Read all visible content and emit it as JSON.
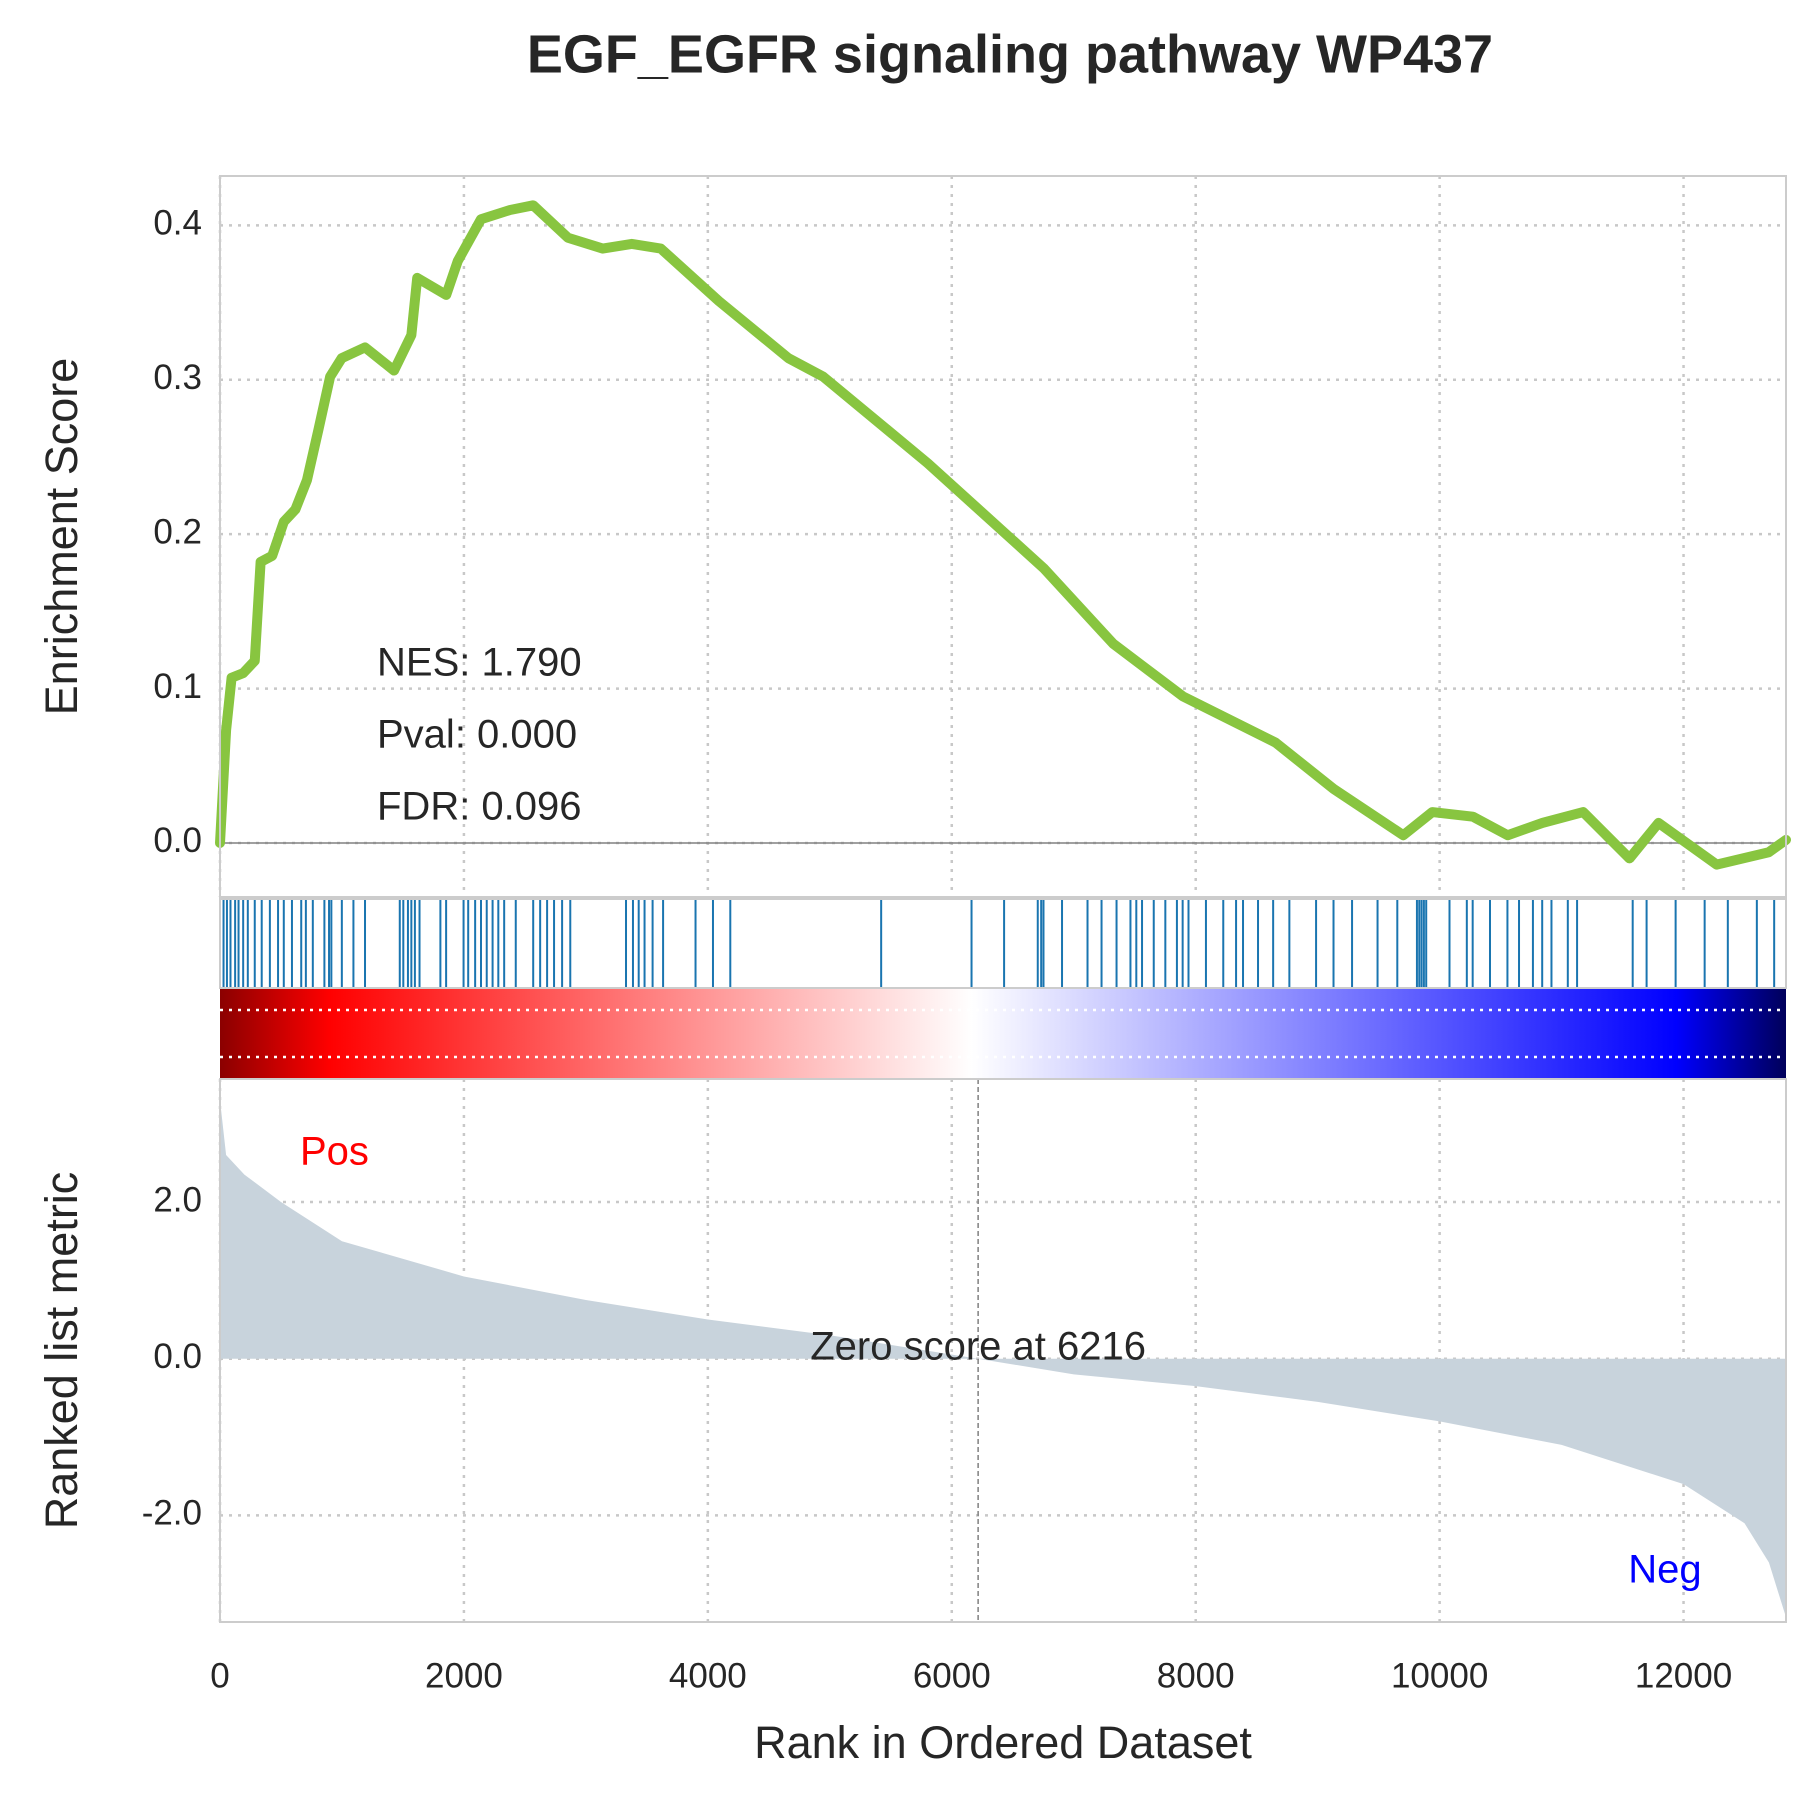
{
  "chart_data": [
    {
      "type": "line",
      "title": "EGF_EGFR signaling pathway WP437",
      "ylabel": "Enrichment Score",
      "annotations": [
        "NES: 1.790",
        "Pval: 0.000",
        "FDR: 0.096"
      ],
      "x": [
        0,
        50,
        95,
        190,
        285,
        333,
        428,
        523,
        618,
        713,
        808,
        903,
        998,
        1189,
        1427,
        1569,
        1617,
        1855,
        1950,
        2140,
        2378,
        2568,
        2853,
        3138,
        3376,
        3614,
        4090,
        4661,
        4946,
        5802,
        6753,
        7324,
        7894,
        8655,
        9131,
        9702,
        9940,
        10273,
        10558,
        10844,
        11177,
        11557,
        11795,
        12271,
        12699,
        12840
      ],
      "series": [
        {
          "color": "#88c540",
          "values": [
            0,
            0.073,
            0.107,
            0.11,
            0.118,
            0.182,
            0.186,
            0.208,
            0.216,
            0.235,
            0.268,
            0.302,
            0.314,
            0.321,
            0.306,
            0.329,
            0.366,
            0.355,
            0.377,
            0.404,
            0.41,
            0.413,
            0.392,
            0.385,
            0.388,
            0.385,
            0.351,
            0.314,
            0.302,
            0.246,
            0.178,
            0.129,
            0.095,
            0.065,
            0.035,
            0.005,
            0.02,
            0.017,
            0.005,
            0.013,
            0.02,
            -0.01,
            0.013,
            -0.014,
            -0.006,
            0.002
          ]
        }
      ],
      "xlim": [
        0,
        12840
      ],
      "xticks": [
        0,
        2000,
        4000,
        6000,
        8000,
        10000,
        12000
      ],
      "ylim": [
        -0.035,
        0.432
      ],
      "yticks": [
        {
          "value": 0,
          "label": "0.0"
        },
        0.1,
        0.2,
        0.3,
        0.4
      ],
      "grid": true
    },
    {
      "type": "rug",
      "color": "#1a75b0",
      "xlim": [
        0,
        12840
      ],
      "x": [
        29,
        57,
        86,
        124,
        152,
        190,
        228,
        285,
        342,
        409,
        476,
        523,
        590,
        666,
        704,
        761,
        856,
        894,
        913,
        999,
        1094,
        1189,
        1474,
        1503,
        1541,
        1569,
        1598,
        1636,
        1807,
        1854,
        1997,
        2035,
        2092,
        2140,
        2187,
        2235,
        2282,
        2330,
        2425,
        2568,
        2625,
        2682,
        2739,
        2805,
        2872,
        3329,
        3386,
        3433,
        3481,
        3547,
        3633,
        3899,
        4042,
        4184,
        5421,
        6162,
        6429,
        6705,
        6733,
        6752,
        6904,
        7113,
        7228,
        7351,
        7465,
        7513,
        7560,
        7656,
        7751,
        7846,
        7893,
        7941,
        8084,
        8226,
        8331,
        8388,
        8511,
        8635,
        8768,
        8987,
        9130,
        9282,
        9491,
        9653,
        9814,
        9833,
        9852,
        9871,
        9890,
        10081,
        10223,
        10271,
        10413,
        10556,
        10651,
        10765,
        10841,
        10917,
        11051,
        11127,
        11583,
        11697,
        11935,
        12173,
        12363,
        12601,
        12743
      ]
    },
    {
      "type": "area",
      "ylabel": "Ranked list metric",
      "xlabel": "Rank in Ordered Dataset",
      "color": "#c8d3dc",
      "x": [
        0,
        50,
        200,
        500,
        1000,
        2000,
        3000,
        4000,
        5000,
        6216,
        7000,
        8000,
        9000,
        10000,
        11000,
        12000,
        12500,
        12700,
        12800,
        12840
      ],
      "values": [
        3.3,
        2.6,
        2.35,
        2.0,
        1.5,
        1.05,
        0.75,
        0.5,
        0.3,
        0,
        -0.2,
        -0.35,
        -0.55,
        -0.8,
        -1.1,
        -1.6,
        -2.1,
        -2.6,
        -3.1,
        -3.3
      ],
      "pos_label": "Pos",
      "neg_label": "Neg",
      "zero_score": 6216,
      "zero_score_label": "Zero score at 6216",
      "xlim": [
        0,
        12840
      ],
      "xticks": [
        0,
        2000,
        4000,
        6000,
        8000,
        10000,
        12000
      ],
      "ylim": [
        -3.36,
        3.57
      ],
      "yticks": [
        {
          "value": -2,
          "label": "-2.0"
        },
        {
          "value": 0,
          "label": "0.0"
        },
        {
          "value": 2,
          "label": "2.0"
        }
      ],
      "grid": true
    }
  ]
}
